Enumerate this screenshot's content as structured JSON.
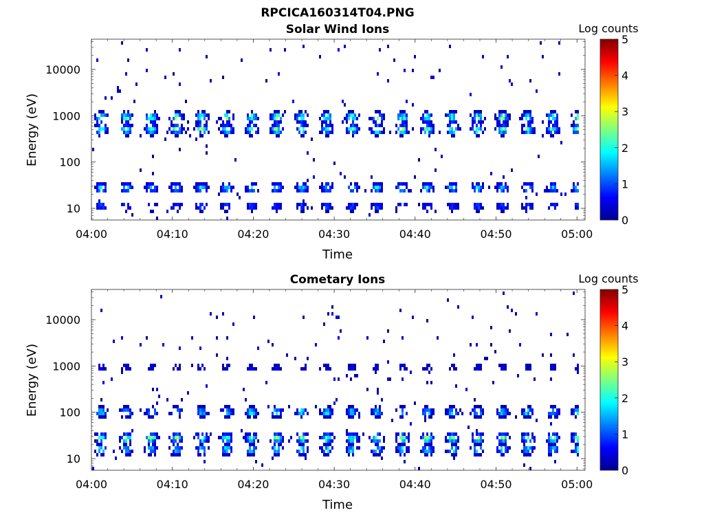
{
  "figure": {
    "title": "RPCICA160314T04.PNG"
  },
  "colorbar": {
    "label": "Log counts",
    "range": [
      0,
      5
    ],
    "ticks": [
      "0",
      "1",
      "2",
      "3",
      "4",
      "5"
    ],
    "colormap": "jet"
  },
  "chart_data": [
    {
      "type": "heatmap",
      "title": "Solar Wind Ions",
      "xlabel": "Time",
      "ylabel": "Energy (eV)",
      "x_range": [
        "04:00",
        "05:00"
      ],
      "x_ticks": [
        "04:00",
        "04:10",
        "04:20",
        "04:30",
        "04:40",
        "04:50",
        "05:00"
      ],
      "y_scale": "log",
      "y_range": [
        5.6,
        45000
      ],
      "y_ticks": [
        "10",
        "100",
        "1000",
        "10000"
      ],
      "value_label": "Log counts",
      "value_range": [
        0,
        5
      ],
      "cycle_period_min": 3.1,
      "bands": [
        {
          "energy_eV": 1000,
          "peak_log_counts": 3.0
        },
        {
          "energy_eV": 550,
          "peak_log_counts": 3.0
        },
        {
          "energy_eV": 30,
          "peak_log_counts": 2.2
        },
        {
          "energy_eV": 12,
          "peak_log_counts": 1.2
        }
      ]
    },
    {
      "type": "heatmap",
      "title": "Cometary Ions",
      "xlabel": "Time",
      "ylabel": "Energy (eV)",
      "x_range": [
        "04:00",
        "05:00"
      ],
      "x_ticks": [
        "04:00",
        "04:10",
        "04:20",
        "04:30",
        "04:40",
        "04:50",
        "05:00"
      ],
      "y_scale": "log",
      "y_range": [
        5.6,
        45000
      ],
      "y_ticks": [
        "10",
        "100",
        "1000",
        "10000"
      ],
      "value_label": "Log counts",
      "value_range": [
        0,
        5
      ],
      "cycle_period_min": 3.1,
      "bands": [
        {
          "energy_eV": 110,
          "peak_log_counts": 2.2
        },
        {
          "energy_eV": 30,
          "peak_log_counts": 3.1
        },
        {
          "energy_eV": 17,
          "peak_log_counts": 2.3
        },
        {
          "energy_eV": 1000,
          "peak_log_counts": 0.6
        }
      ]
    }
  ]
}
